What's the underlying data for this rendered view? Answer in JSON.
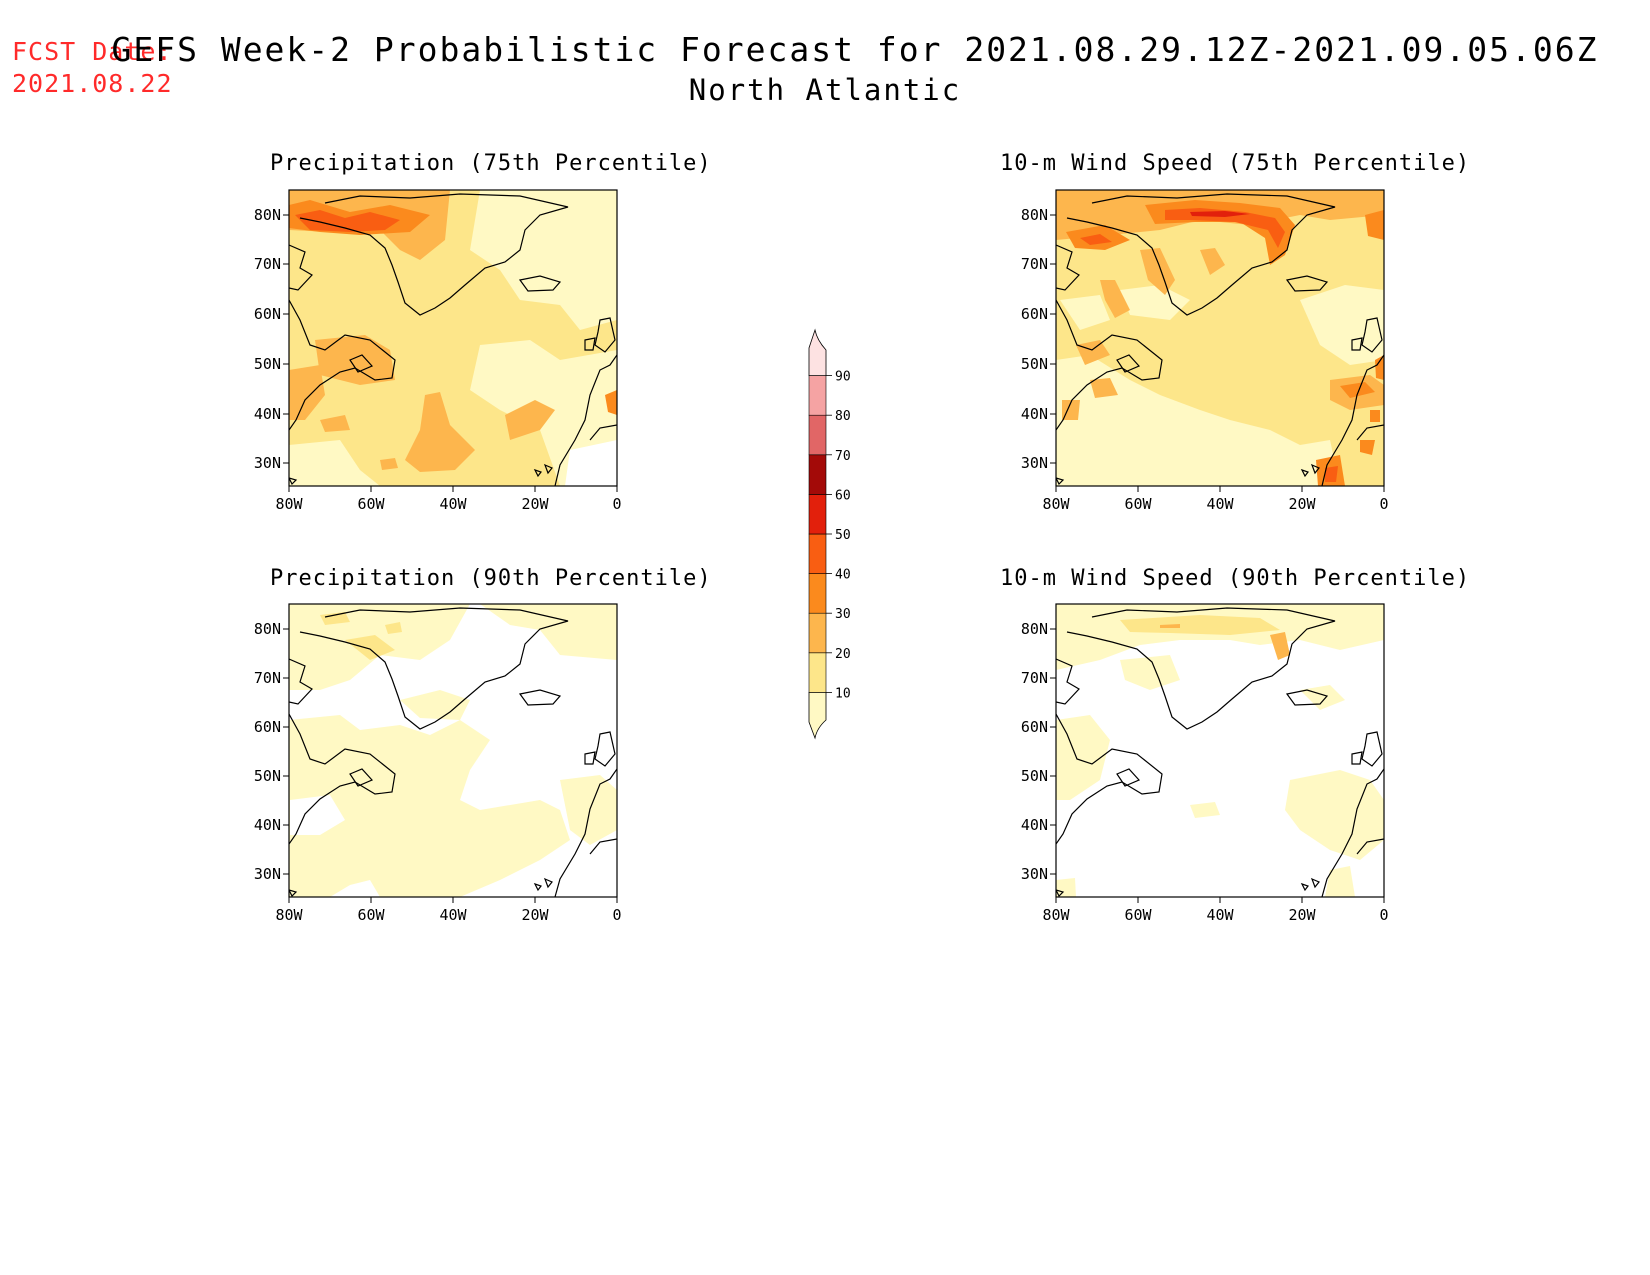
{
  "header": {
    "fcst_label": "FCST Date:",
    "fcst_date": "2021.08.22",
    "title": "GEFS Week-2 Probabilistic Forecast for 2021.08.29.12Z-2021.09.05.06Z",
    "subtitle": "North Atlantic"
  },
  "panels": [
    {
      "title": "Precipitation (75th Percentile)"
    },
    {
      "title": "10-m Wind Speed (75th Percentile)"
    },
    {
      "title": "Precipitation (90th Percentile)"
    },
    {
      "title": "10-m Wind Speed (90th Percentile)"
    }
  ],
  "axes": {
    "lat_labels": [
      "80N",
      "70N",
      "60N",
      "50N",
      "40N",
      "30N"
    ],
    "lon_labels": [
      "80W",
      "60W",
      "40W",
      "20W",
      "0"
    ]
  },
  "colorbar": {
    "levels": [
      "10",
      "20",
      "30",
      "40",
      "50",
      "60",
      "70",
      "80",
      "90"
    ],
    "colors": [
      "#fff9c4",
      "#fde68a",
      "#fdb64d",
      "#fb8a1d",
      "#f95e12",
      "#e2200c",
      "#a30a08",
      "#e16666",
      "#f5a3a3",
      "#fde2e2"
    ]
  }
}
